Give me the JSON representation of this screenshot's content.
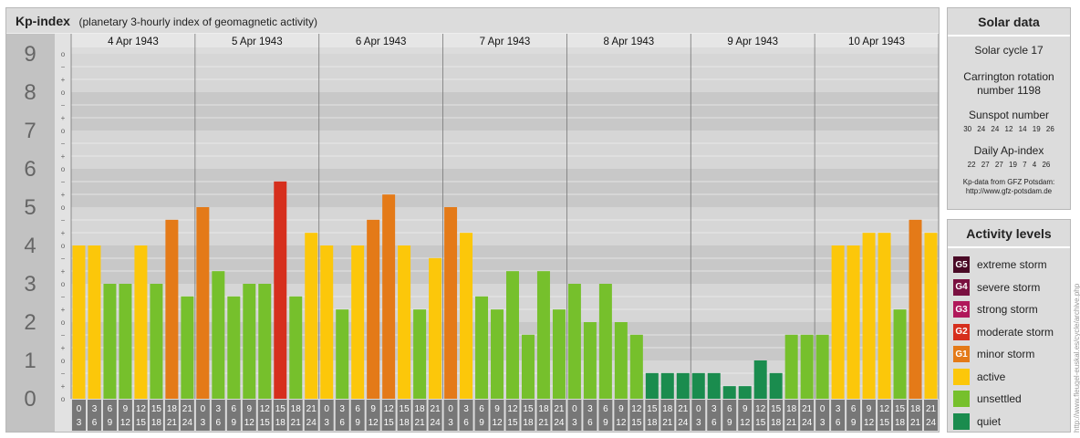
{
  "header": {
    "title": "Kp-index",
    "subtitle": "(planetary 3-hourly index of geomagnetic activity)"
  },
  "chart_data": {
    "type": "bar",
    "title": "Kp-index",
    "subtitle": "(planetary 3-hourly index of geomagnetic activity)",
    "ylim": [
      0,
      9
    ],
    "y_ticks": [
      "0",
      "1",
      "2",
      "3",
      "4",
      "5",
      "6",
      "7",
      "8",
      "9"
    ],
    "minor_tick_labels": [
      "o",
      "+",
      "−"
    ],
    "days": [
      "4 Apr 1943",
      "5 Apr 1943",
      "6 Apr 1943",
      "7 Apr 1943",
      "8 Apr 1943",
      "9 Apr 1943",
      "10 Apr 1943"
    ],
    "interval_top": [
      "0",
      "3",
      "6",
      "9",
      "12",
      "15",
      "18",
      "21"
    ],
    "interval_bottom": [
      "3",
      "6",
      "9",
      "12",
      "15",
      "18",
      "21",
      "24"
    ],
    "values": [
      4.0,
      4.0,
      3.0,
      3.0,
      4.0,
      3.0,
      4.67,
      2.67,
      5.0,
      3.33,
      2.67,
      3.0,
      3.0,
      5.67,
      2.67,
      4.33,
      4.0,
      2.33,
      4.0,
      4.67,
      5.33,
      4.0,
      2.33,
      3.67,
      5.0,
      4.33,
      2.67,
      2.33,
      3.33,
      1.67,
      3.33,
      2.33,
      3.0,
      2.0,
      3.0,
      2.0,
      1.67,
      0.67,
      0.67,
      0.67,
      0.67,
      0.67,
      0.33,
      0.33,
      1.0,
      0.67,
      1.67,
      1.67,
      1.67,
      4.0,
      4.0,
      4.33,
      4.33,
      2.33,
      4.67,
      4.33
    ],
    "colors": {
      "quiet": "#1a8c4e",
      "unsettled": "#76c02c",
      "active": "#fcc70a",
      "minor": "#e47a18",
      "moderate": "#d62f1d"
    },
    "grid": true,
    "legend": "right"
  },
  "solar": {
    "title": "Solar data",
    "cycle": "Solar cycle 17",
    "carrington_1": "Carrington rotation",
    "carrington_2": "number 1198",
    "sunspot_label": "Sunspot number",
    "sunspot_values": "30 24 24 12 14 19 26",
    "ap_label": "Daily Ap-index",
    "ap_values": "22 27 27 19 7 4 26",
    "source_1": "Kp-data from GFZ Potsdam:",
    "source_2": "http://www.gfz-potsdam.de"
  },
  "activity": {
    "title": "Activity levels",
    "levels": [
      {
        "code": "G5",
        "label": "extreme storm",
        "color": "#4a0a26"
      },
      {
        "code": "G4",
        "label": "severe storm",
        "color": "#7a1040"
      },
      {
        "code": "G3",
        "label": "strong storm",
        "color": "#b0185a"
      },
      {
        "code": "G2",
        "label": "moderate storm",
        "color": "#d62f1d"
      },
      {
        "code": "G1",
        "label": "minor storm",
        "color": "#e47a18"
      },
      {
        "code": "",
        "label": "active",
        "color": "#fcc70a"
      },
      {
        "code": "",
        "label": "unsettled",
        "color": "#76c02c"
      },
      {
        "code": "",
        "label": "quiet",
        "color": "#1a8c4e"
      }
    ]
  },
  "credit": "http://www.fleugel-euskal.es/cycle/archive.php"
}
